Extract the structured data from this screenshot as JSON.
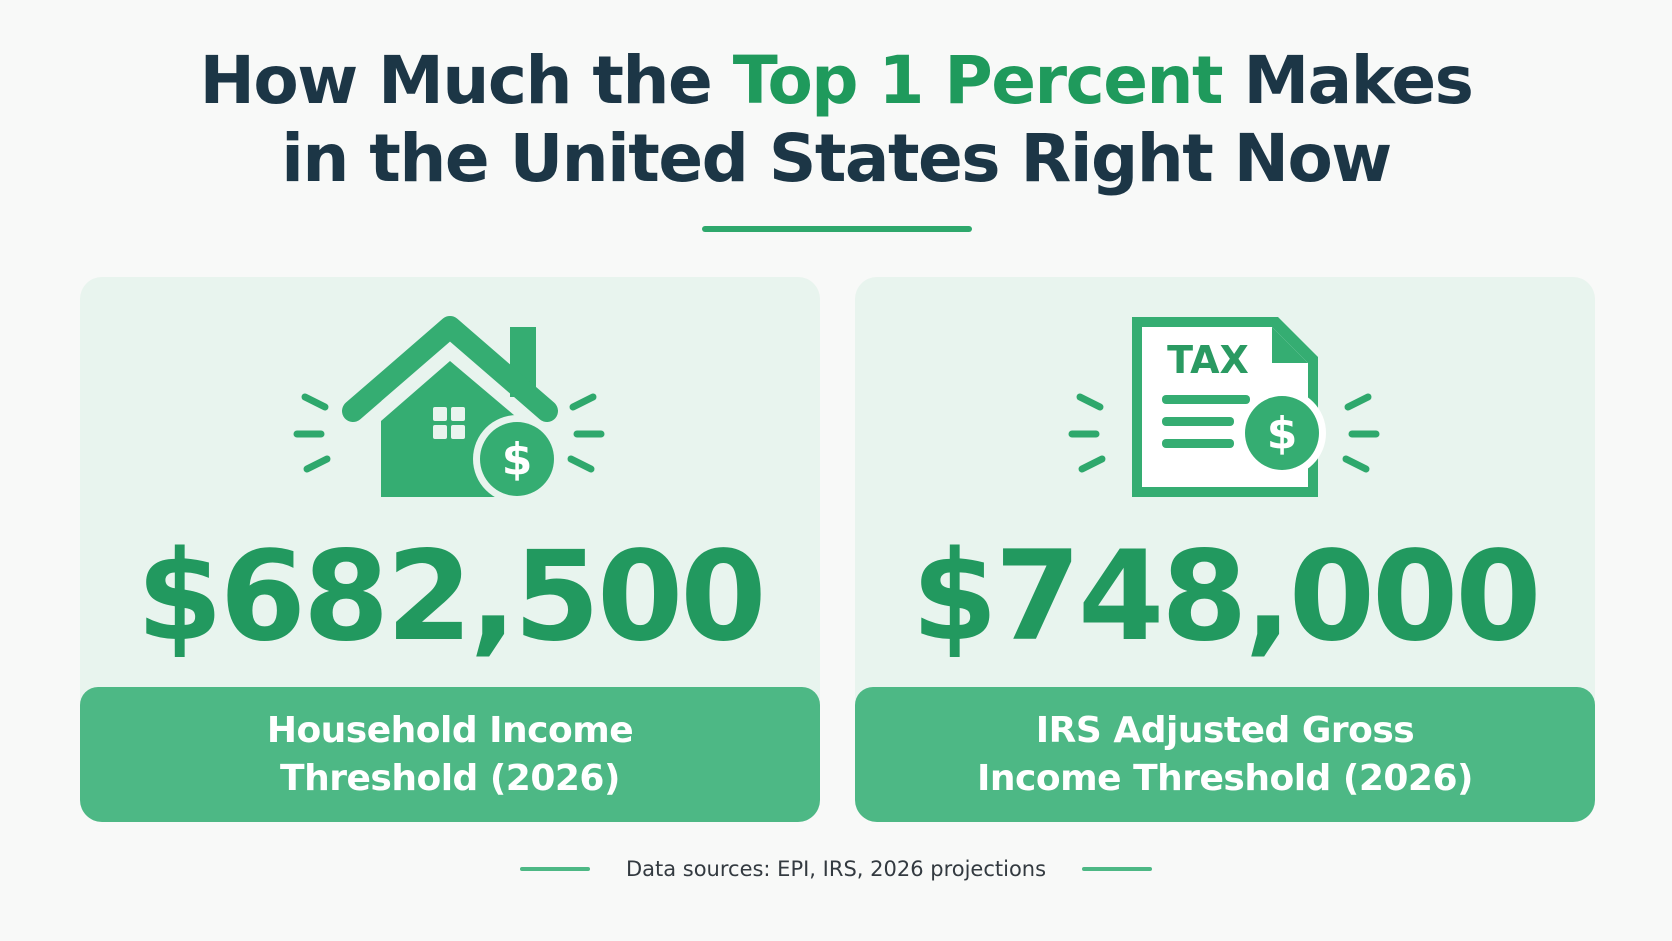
{
  "title": {
    "line1_pre": "How Much the ",
    "line1_accent": "Top 1 Percent",
    "line1_post": " Makes",
    "line2": "in the United States Right Now"
  },
  "cards": [
    {
      "icon": "house-dollar-icon",
      "amount": "$682,500",
      "label_line1": "Household Income",
      "label_line2": "Threshold (2026)"
    },
    {
      "icon": "tax-document-dollar-icon",
      "icon_text": "TAX",
      "amount": "$748,000",
      "label_line1": "IRS Adjusted Gross",
      "label_line2": "Income Threshold (2026)"
    }
  ],
  "footer": {
    "source_text": "Data sources: EPI, IRS, 2026 projections"
  },
  "colors": {
    "heading": "#1c3646",
    "accent_green": "#1f9a5c",
    "card_bg": "#e8f4ee",
    "label_bg": "#4db885"
  }
}
